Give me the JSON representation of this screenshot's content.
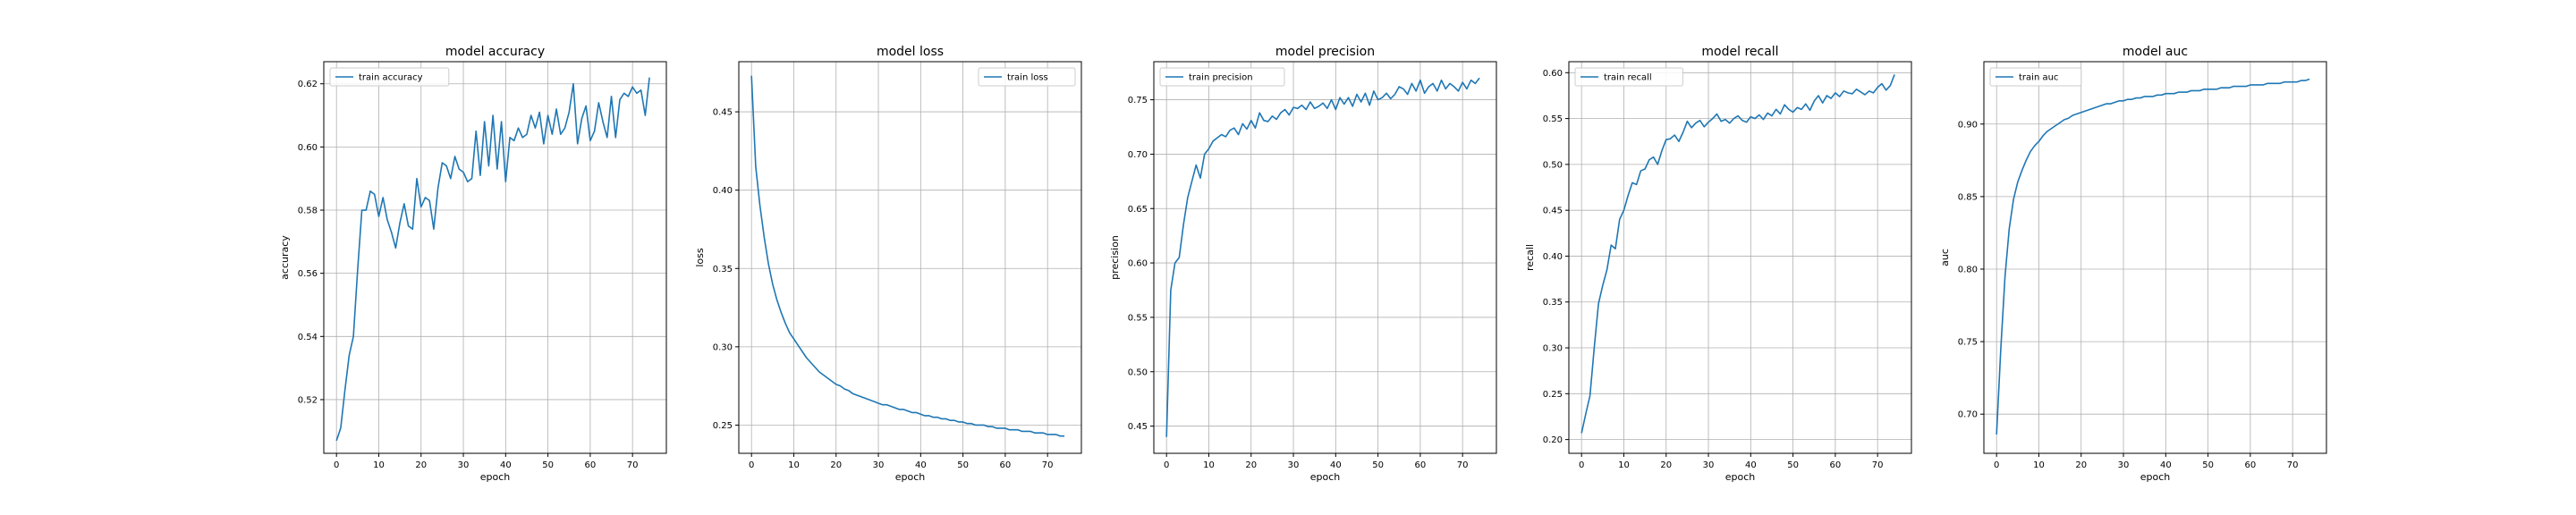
{
  "chart_data": [
    {
      "type": "line",
      "title": "model accuracy",
      "xlabel": "epoch",
      "ylabel": "accuracy",
      "xlim": [
        -3,
        78
      ],
      "ylim": [
        0.503,
        0.627
      ],
      "xticks": [
        0,
        10,
        20,
        30,
        40,
        50,
        60,
        70
      ],
      "yticks": [
        0.52,
        0.54,
        0.56,
        0.58,
        0.6,
        0.62
      ],
      "ytick_labels": [
        "0.52",
        "0.54",
        "0.56",
        "0.58",
        "0.60",
        "0.62"
      ],
      "grid": true,
      "legend_position": "top-left",
      "series": [
        {
          "name": "train accuracy",
          "color": "#1f77b4",
          "values": [
            0.507,
            0.511,
            0.523,
            0.534,
            0.54,
            0.561,
            0.58,
            0.58,
            0.586,
            0.585,
            0.578,
            0.584,
            0.577,
            0.573,
            0.568,
            0.576,
            0.582,
            0.575,
            0.574,
            0.59,
            0.581,
            0.584,
            0.583,
            0.574,
            0.587,
            0.595,
            0.594,
            0.59,
            0.597,
            0.593,
            0.592,
            0.589,
            0.59,
            0.605,
            0.591,
            0.608,
            0.594,
            0.61,
            0.593,
            0.608,
            0.589,
            0.603,
            0.602,
            0.606,
            0.603,
            0.604,
            0.61,
            0.606,
            0.611,
            0.601,
            0.61,
            0.604,
            0.612,
            0.604,
            0.606,
            0.611,
            0.62,
            0.601,
            0.609,
            0.613,
            0.602,
            0.605,
            0.614,
            0.608,
            0.603,
            0.616,
            0.603,
            0.615,
            0.617,
            0.616,
            0.619,
            0.617,
            0.618,
            0.61,
            0.622
          ]
        }
      ]
    },
    {
      "type": "line",
      "title": "model loss",
      "xlabel": "epoch",
      "ylabel": "loss",
      "xlim": [
        -3,
        78
      ],
      "ylim": [
        0.232,
        0.482
      ],
      "xticks": [
        0,
        10,
        20,
        30,
        40,
        50,
        60,
        70
      ],
      "yticks": [
        0.25,
        0.3,
        0.35,
        0.4,
        0.45
      ],
      "ytick_labels": [
        "0.25",
        "0.30",
        "0.35",
        "0.40",
        "0.45"
      ],
      "grid": true,
      "legend_position": "top-right",
      "series": [
        {
          "name": "train loss",
          "color": "#1f77b4",
          "values": [
            0.473,
            0.415,
            0.39,
            0.37,
            0.353,
            0.34,
            0.33,
            0.322,
            0.315,
            0.309,
            0.305,
            0.301,
            0.297,
            0.293,
            0.29,
            0.287,
            0.284,
            0.282,
            0.28,
            0.278,
            0.276,
            0.275,
            0.273,
            0.272,
            0.27,
            0.269,
            0.268,
            0.267,
            0.266,
            0.265,
            0.264,
            0.263,
            0.263,
            0.262,
            0.261,
            0.26,
            0.26,
            0.259,
            0.258,
            0.258,
            0.257,
            0.256,
            0.256,
            0.255,
            0.255,
            0.254,
            0.254,
            0.253,
            0.253,
            0.252,
            0.252,
            0.251,
            0.251,
            0.25,
            0.25,
            0.25,
            0.249,
            0.249,
            0.248,
            0.248,
            0.248,
            0.247,
            0.247,
            0.247,
            0.246,
            0.246,
            0.246,
            0.245,
            0.245,
            0.245,
            0.244,
            0.244,
            0.244,
            0.243,
            0.243
          ]
        }
      ]
    },
    {
      "type": "line",
      "title": "model precision",
      "xlabel": "epoch",
      "ylabel": "precision",
      "xlim": [
        -3,
        78
      ],
      "ylim": [
        0.425,
        0.785
      ],
      "xticks": [
        0,
        10,
        20,
        30,
        40,
        50,
        60,
        70
      ],
      "yticks": [
        0.45,
        0.5,
        0.55,
        0.6,
        0.65,
        0.7,
        0.75
      ],
      "ytick_labels": [
        "0.45",
        "0.50",
        "0.55",
        "0.60",
        "0.65",
        "0.70",
        "0.75"
      ],
      "grid": true,
      "legend_position": "top-left",
      "series": [
        {
          "name": "train precision",
          "color": "#1f77b4",
          "values": [
            0.44,
            0.575,
            0.6,
            0.605,
            0.635,
            0.66,
            0.675,
            0.69,
            0.678,
            0.7,
            0.705,
            0.712,
            0.715,
            0.718,
            0.716,
            0.722,
            0.724,
            0.718,
            0.728,
            0.723,
            0.731,
            0.724,
            0.738,
            0.731,
            0.73,
            0.735,
            0.732,
            0.738,
            0.741,
            0.736,
            0.743,
            0.742,
            0.745,
            0.741,
            0.748,
            0.742,
            0.744,
            0.747,
            0.742,
            0.75,
            0.741,
            0.752,
            0.746,
            0.752,
            0.744,
            0.755,
            0.748,
            0.756,
            0.745,
            0.758,
            0.75,
            0.752,
            0.756,
            0.751,
            0.755,
            0.762,
            0.76,
            0.755,
            0.765,
            0.758,
            0.768,
            0.756,
            0.762,
            0.765,
            0.758,
            0.768,
            0.76,
            0.765,
            0.762,
            0.758,
            0.766,
            0.76,
            0.768,
            0.765,
            0.77
          ]
        }
      ]
    },
    {
      "type": "line",
      "title": "model recall",
      "xlabel": "epoch",
      "ylabel": "recall",
      "xlim": [
        -3,
        78
      ],
      "ylim": [
        0.185,
        0.612
      ],
      "xticks": [
        0,
        10,
        20,
        30,
        40,
        50,
        60,
        70
      ],
      "yticks": [
        0.2,
        0.25,
        0.3,
        0.35,
        0.4,
        0.45,
        0.5,
        0.55,
        0.6
      ],
      "ytick_labels": [
        "0.20",
        "0.25",
        "0.30",
        "0.35",
        "0.40",
        "0.45",
        "0.50",
        "0.55",
        "0.60"
      ],
      "grid": true,
      "legend_position": "top-left",
      "series": [
        {
          "name": "train recall",
          "color": "#1f77b4",
          "values": [
            0.207,
            0.228,
            0.248,
            0.3,
            0.348,
            0.368,
            0.385,
            0.412,
            0.408,
            0.44,
            0.45,
            0.466,
            0.48,
            0.478,
            0.493,
            0.495,
            0.505,
            0.508,
            0.5,
            0.515,
            0.527,
            0.528,
            0.532,
            0.525,
            0.535,
            0.547,
            0.54,
            0.545,
            0.548,
            0.541,
            0.546,
            0.55,
            0.555,
            0.547,
            0.549,
            0.545,
            0.55,
            0.553,
            0.548,
            0.546,
            0.552,
            0.55,
            0.554,
            0.549,
            0.556,
            0.553,
            0.56,
            0.555,
            0.565,
            0.56,
            0.557,
            0.562,
            0.56,
            0.566,
            0.559,
            0.569,
            0.575,
            0.567,
            0.575,
            0.572,
            0.578,
            0.574,
            0.58,
            0.578,
            0.577,
            0.582,
            0.579,
            0.576,
            0.58,
            0.578,
            0.584,
            0.588,
            0.581,
            0.586,
            0.598
          ]
        }
      ]
    },
    {
      "type": "line",
      "title": "model auc",
      "xlabel": "epoch",
      "ylabel": "auc",
      "xlim": [
        -3,
        78
      ],
      "ylim": [
        0.673,
        0.943
      ],
      "xticks": [
        0,
        10,
        20,
        30,
        40,
        50,
        60,
        70
      ],
      "yticks": [
        0.7,
        0.75,
        0.8,
        0.85,
        0.9
      ],
      "ytick_labels": [
        "0.70",
        "0.75",
        "0.80",
        "0.85",
        "0.90"
      ],
      "grid": true,
      "legend_position": "top-left",
      "series": [
        {
          "name": "train auc",
          "color": "#1f77b4",
          "values": [
            0.686,
            0.745,
            0.795,
            0.828,
            0.848,
            0.86,
            0.868,
            0.875,
            0.881,
            0.885,
            0.888,
            0.892,
            0.895,
            0.897,
            0.899,
            0.901,
            0.903,
            0.904,
            0.906,
            0.907,
            0.908,
            0.909,
            0.91,
            0.911,
            0.912,
            0.913,
            0.914,
            0.914,
            0.915,
            0.916,
            0.916,
            0.917,
            0.917,
            0.918,
            0.918,
            0.919,
            0.919,
            0.919,
            0.92,
            0.92,
            0.921,
            0.921,
            0.921,
            0.922,
            0.922,
            0.922,
            0.923,
            0.923,
            0.923,
            0.924,
            0.924,
            0.924,
            0.924,
            0.925,
            0.925,
            0.925,
            0.926,
            0.926,
            0.926,
            0.926,
            0.927,
            0.927,
            0.927,
            0.927,
            0.928,
            0.928,
            0.928,
            0.928,
            0.929,
            0.929,
            0.929,
            0.929,
            0.93,
            0.93,
            0.931
          ]
        }
      ]
    }
  ]
}
